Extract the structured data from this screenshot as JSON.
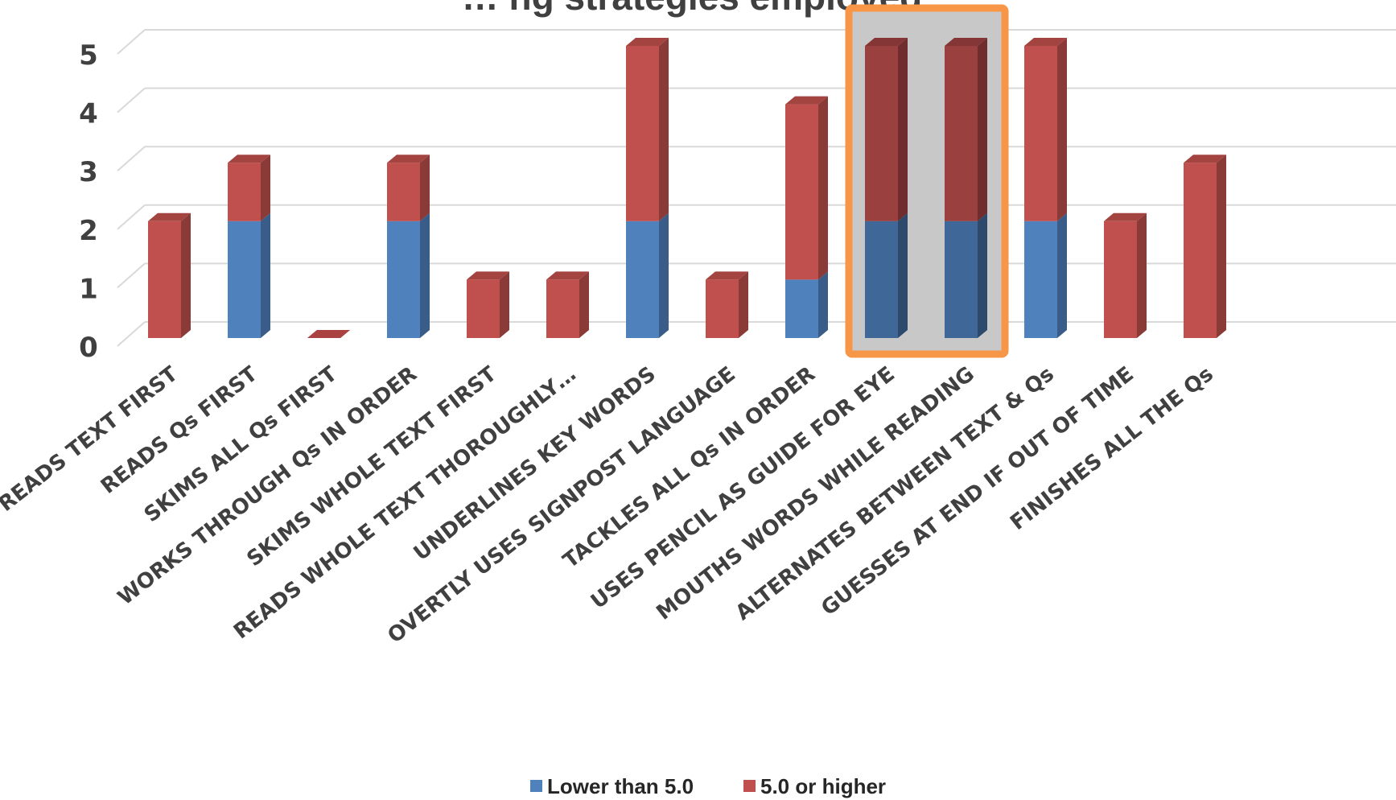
{
  "chart_data": {
    "type": "bar",
    "stacked": true,
    "three_d": true,
    "title": "… ng strategies employed",
    "xlabel": "",
    "ylabel": "",
    "ylim": [
      0,
      5
    ],
    "yticks": [
      0,
      1,
      2,
      3,
      4,
      5
    ],
    "grid": true,
    "legend_position": "bottom",
    "categories": [
      "READS TEXT FIRST",
      "READS Qs FIRST",
      "SKIMS ALL Qs FIRST",
      "WORKS THROUGH Qs IN ORDER",
      "SKIMS WHOLE TEXT FIRST",
      "READS WHOLE TEXT THOROUGHLY…",
      "UNDERLINES KEY WORDS",
      "OVERTLY USES SIGNPOST LANGUAGE",
      "TACKLES ALL Qs IN ORDER",
      "USES PENCIL AS GUIDE FOR EYE",
      "MOUTHS WORDS WHILE READING",
      "ALTERNATES BETWEEN TEXT & Qs",
      "GUESSES AT END IF OUT OF TIME",
      "FINISHES ALL THE Qs"
    ],
    "series": [
      {
        "name": "Lower than 5.0",
        "color": "#4f81bd",
        "values": [
          0,
          2,
          0,
          2,
          0,
          0,
          2,
          0,
          1,
          2,
          2,
          2,
          0,
          0
        ]
      },
      {
        "name": "5.0 or higher",
        "color": "#c0504d",
        "values": [
          2,
          1,
          0,
          1,
          1,
          1,
          3,
          1,
          3,
          3,
          3,
          3,
          2,
          3
        ]
      }
    ],
    "highlight": {
      "categories": [
        "USES PENCIL AS GUIDE FOR EYE",
        "MOUTHS WORDS WHILE READING"
      ],
      "border_color": "#f79646",
      "fill_color": "#c8c8c8"
    }
  }
}
